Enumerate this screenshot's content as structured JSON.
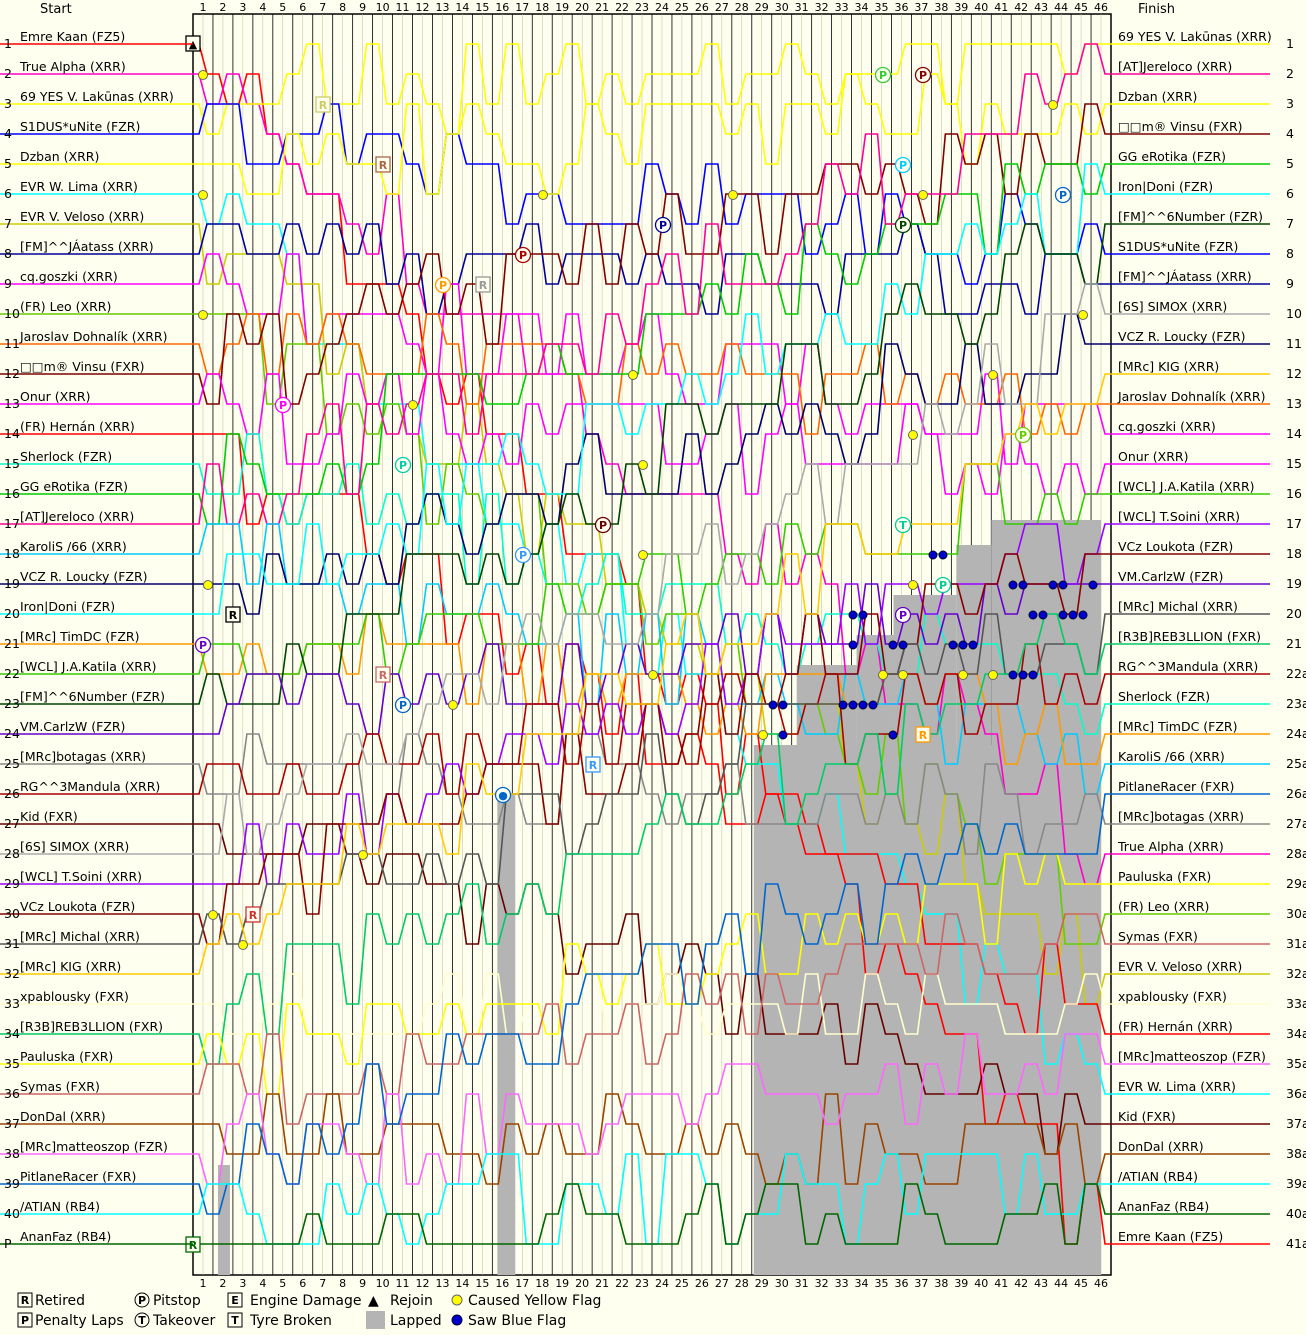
{
  "chart_data": {
    "type": "line",
    "header": {
      "start": "Start",
      "finish": "Finish"
    },
    "laps": 46,
    "start_positions": [
      "1",
      "2",
      "3",
      "4",
      "5",
      "6",
      "7",
      "8",
      "9",
      "10",
      "11",
      "12",
      "13",
      "14",
      "15",
      "16",
      "17",
      "18",
      "19",
      "20",
      "21",
      "22",
      "23",
      "24",
      "25",
      "26",
      "27",
      "28",
      "29",
      "30",
      "31",
      "32",
      "33",
      "34",
      "35",
      "36",
      "37",
      "38",
      "39",
      "40",
      "P"
    ],
    "finish_positions": [
      "1",
      "2",
      "3",
      "4",
      "5",
      "6",
      "7",
      "8",
      "9",
      "10",
      "11",
      "12",
      "13",
      "14",
      "15",
      "16",
      "17",
      "18",
      "19",
      "20",
      "21",
      "22a",
      "23a",
      "24a",
      "25a",
      "26a",
      "27a",
      "28a",
      "29a",
      "30a",
      "31a",
      "32a",
      "33a",
      "34a",
      "35a",
      "36a",
      "37a",
      "38a",
      "39a",
      "40a",
      "41a"
    ],
    "start_labels": [
      "Emre Kaan (FZ5)",
      "True Alpha (XRR)",
      "69 YES V. Lakūnas (XRR)",
      "S1DUS*uNite (FZR)",
      "Dzban (XRR)",
      "EVR W. Lima (XRR)",
      "EVR V. Veloso (XRR)",
      "[FM]^^JÁatass (XRR)",
      "cq.goszki (XRR)",
      "(FR) Leo (XRR)",
      "Jaroslav Dohnalík (XRR)",
      "□□m® Vinsu (FXR)",
      "Onur (XRR)",
      "(FR) Hernán (XRR)",
      "Sherlock (FZR)",
      "GG eRotika (FZR)",
      "[AT]Jereloco (XRR)",
      "KaroliS /66 (XRR)",
      "VCZ R. Loucky (FZR)",
      "Iron|Doni (FZR)",
      "[MRc] TimDC (FZR)",
      "[WCL] J.A.Katila (XRR)",
      "[FM]^^6Number (FZR)",
      "VM.CarlzW (FZR)",
      "[MRc]botagas (XRR)",
      "RG^^3Mandula (XRR)",
      "Kid (FXR)",
      "[6S] SIMOX (XRR)",
      "[WCL] T.Soini (XRR)",
      "VCz Loukota (FZR)",
      "[MRc] Michal (XRR)",
      "[MRc] KIG (XRR)",
      "xpablousky (FXR)",
      "[R3B]REB3LLION (FXR)",
      "Pauluska (FXR)",
      "Symas (FXR)",
      "DonDal (XRR)",
      "[MRc]matteoszop (FZR)",
      "PitlaneRacer (FXR)",
      "/ATIAN (RB4)",
      "AnanFaz (RB4)"
    ],
    "finish_labels": [
      "69 YES V. Lakūnas (XRR)",
      "[AT]Jereloco (XRR)",
      "Dzban (XRR)",
      "□□m® Vinsu (FXR)",
      "GG eRotika (FZR)",
      "Iron|Doni (FZR)",
      "[FM]^^6Number (FZR)",
      "S1DUS*uNite (FZR)",
      "[FM]^^JÁatass (XRR)",
      "[6S] SIMOX (XRR)",
      "VCZ R. Loucky (FZR)",
      "[MRc] KIG (XRR)",
      "Jaroslav Dohnalík (XRR)",
      "cq.goszki (XRR)",
      "Onur (XRR)",
      "[WCL] J.A.Katila (XRR)",
      "[WCL] T.Soini (XRR)",
      "VCz Loukota (FZR)",
      "VM.CarlzW (FZR)",
      "[MRc] Michal (XRR)",
      "[R3B]REB3LLION (FXR)",
      "RG^^3Mandula (XRR)",
      "Sherlock (FZR)",
      "[MRc] TimDC (FZR)",
      "KaroliS /66 (XRR)",
      "PitlaneRacer (FXR)",
      "[MRc]botagas (XRR)",
      "True Alpha (XRR)",
      "Pauluska (FXR)",
      "(FR) Leo (XRR)",
      "Symas (FXR)",
      "EVR V. Veloso (XRR)",
      "xpablousky (FXR)",
      "(FR) Hernán (XRR)",
      "[MRc]matteoszop (FZR)",
      "EVR W. Lima (XRR)",
      "Kid (FXR)",
      "DonDal (XRR)",
      "/ATIAN (RB4)",
      "AnanFaz (RB4)",
      "Emre Kaan (FZ5)"
    ],
    "colors": [
      "#ff0000",
      "#ff00cc",
      "#ffff00",
      "#0000ff",
      "#ffff00",
      "#00ffff",
      "#cccc00",
      "#000099",
      "#ff00ff",
      "#66cc00",
      "#ff6600",
      "#800000",
      "#ff00ff",
      "#ff0000",
      "#00ffcc",
      "#00cc00",
      "#ff0099",
      "#00ccff",
      "#000066",
      "#00ffff",
      "#ff9900",
      "#33cc00",
      "#004400",
      "#6600cc",
      "#888888",
      "#aa0000",
      "#660000",
      "#aaaaaa",
      "#9900ff",
      "#880000",
      "#555555",
      "#ffcc00",
      "#ffffcc",
      "#00cc66",
      "#ffff00",
      "#cc6666",
      "#994400",
      "#ff66ff",
      "#0066cc",
      "#00ffff",
      "#006600"
    ],
    "legend": [
      {
        "icon": "retired-icon",
        "symbol": "R",
        "label": "Retired"
      },
      {
        "icon": "pitstop-icon",
        "symbol": "P",
        "label": "Pitstop"
      },
      {
        "icon": "engine-damage-icon",
        "symbol": "E",
        "label": "Engine Damage"
      },
      {
        "icon": "rejoin-icon",
        "symbol": "▲",
        "label": "Rejoin"
      },
      {
        "icon": "yellow-flag-icon",
        "symbol": "●",
        "label": "Caused Yellow Flag"
      },
      {
        "icon": "penalty-icon",
        "symbol": "P",
        "label": "Penalty Laps"
      },
      {
        "icon": "takeover-icon",
        "symbol": "T",
        "label": "Takeover"
      },
      {
        "icon": "tyre-broken-icon",
        "symbol": "T",
        "label": "Tyre Broken"
      },
      {
        "icon": "lapped-icon",
        "symbol": "",
        "label": "Lapped"
      },
      {
        "icon": "blue-flag-icon",
        "symbol": "●",
        "label": "Saw Blue Flag"
      }
    ]
  }
}
